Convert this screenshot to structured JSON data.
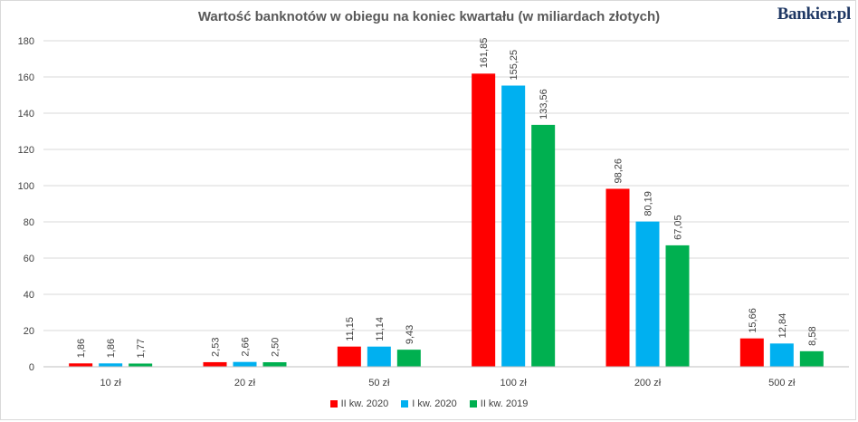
{
  "title": "Wartość banknotów w obiegu na koniec kwartału (w miliardach złotych)",
  "brand": "Bankier.pl",
  "chart_data": {
    "type": "bar",
    "title": "Wartość banknotów w obiegu na koniec kwartału (w miliardach złotych)",
    "xlabel": "",
    "ylabel": "",
    "ylim": [
      0,
      180
    ],
    "yticks": [
      0,
      20,
      40,
      60,
      80,
      100,
      120,
      140,
      160,
      180
    ],
    "grid": true,
    "legend_position": "bottom",
    "categories": [
      "10 zł",
      "20 zł",
      "50 zł",
      "100 zł",
      "200 zł",
      "500 zł"
    ],
    "series": [
      {
        "name": "II kw. 2020",
        "color": "#ff0000",
        "values": [
          1.86,
          2.53,
          11.15,
          161.85,
          98.26,
          15.66
        ],
        "labels": [
          "1,86",
          "2,53",
          "11,15",
          "161,85",
          "98,26",
          "15,66"
        ]
      },
      {
        "name": "I kw. 2020",
        "color": "#00b0f0",
        "values": [
          1.86,
          2.66,
          11.14,
          155.25,
          80.19,
          12.84
        ],
        "labels": [
          "1,86",
          "2,66",
          "11,14",
          "155,25",
          "80,19",
          "12,84"
        ]
      },
      {
        "name": "II kw. 2019",
        "color": "#00b050",
        "values": [
          1.77,
          2.5,
          9.43,
          133.56,
          67.05,
          8.58
        ],
        "labels": [
          "1,77",
          "2,50",
          "9,43",
          "133,56",
          "67,05",
          "8,58"
        ]
      }
    ]
  }
}
